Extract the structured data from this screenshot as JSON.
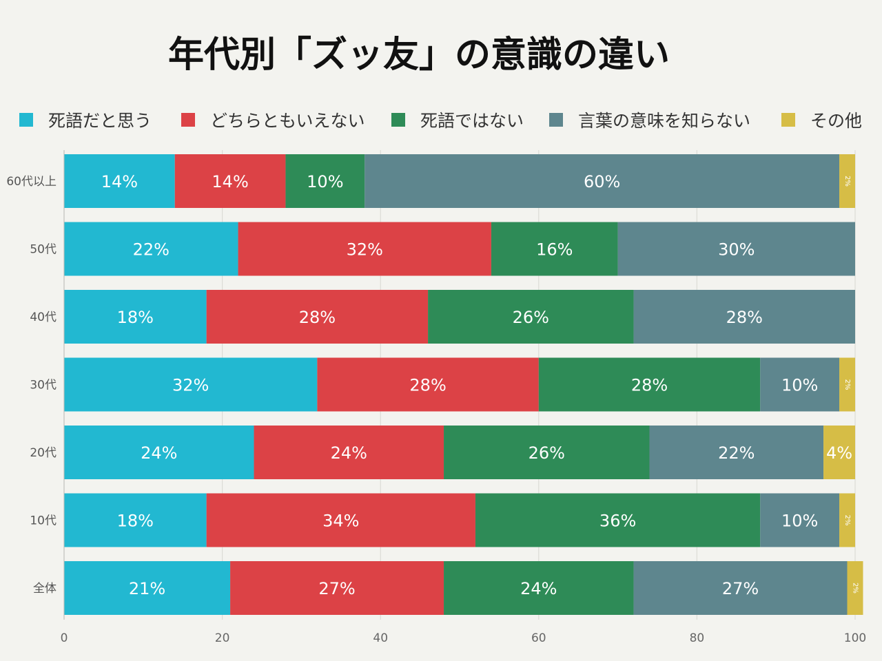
{
  "chart_data": {
    "type": "bar",
    "orientation": "horizontal",
    "stacked": true,
    "title": "年代別「ズッ友」の意識の違い",
    "categories": [
      "60代以上",
      "50代",
      "40代",
      "30代",
      "20代",
      "10代",
      "全体"
    ],
    "series": [
      {
        "name": "死語だと思う",
        "color": "#22b8d1",
        "values": [
          14,
          22,
          18,
          32,
          24,
          18,
          21
        ],
        "labels": [
          "14%",
          "22%",
          "18%",
          "32%",
          "24%",
          "18%",
          "21%"
        ]
      },
      {
        "name": "どちらともいえない",
        "color": "#dc4246",
        "values": [
          14,
          32,
          28,
          28,
          24,
          34,
          27
        ],
        "labels": [
          "14%",
          "32%",
          "28%",
          "28%",
          "24%",
          "34%",
          "27%"
        ]
      },
      {
        "name": "死語ではない",
        "color": "#2e8b57",
        "values": [
          10,
          16,
          26,
          28,
          26,
          36,
          24
        ],
        "labels": [
          "10%",
          "16%",
          "26%",
          "28%",
          "26%",
          "36%",
          "24%"
        ]
      },
      {
        "name": "言葉の意味を知らない",
        "color": "#5e868e",
        "values": [
          60,
          30,
          28,
          10,
          22,
          10,
          27
        ],
        "labels": [
          "60%",
          "30%",
          "28%",
          "10%",
          "22%",
          "10%",
          "27%"
        ]
      },
      {
        "name": "その他",
        "color": "#d6bd46",
        "values": [
          2,
          0,
          0,
          2,
          4,
          2,
          2
        ],
        "labels": [
          "2%",
          "",
          "",
          "2%",
          "4%",
          "2%",
          "2%"
        ]
      }
    ],
    "xlim": [
      0,
      100
    ],
    "xticks": [
      "0",
      "20",
      "40",
      "60",
      "80",
      "100"
    ],
    "xlabel": "",
    "ylabel": "",
    "legend_position": "top",
    "grid": true,
    "grid_color": "#dcdcd6",
    "background_color": "#f3f3ef"
  }
}
